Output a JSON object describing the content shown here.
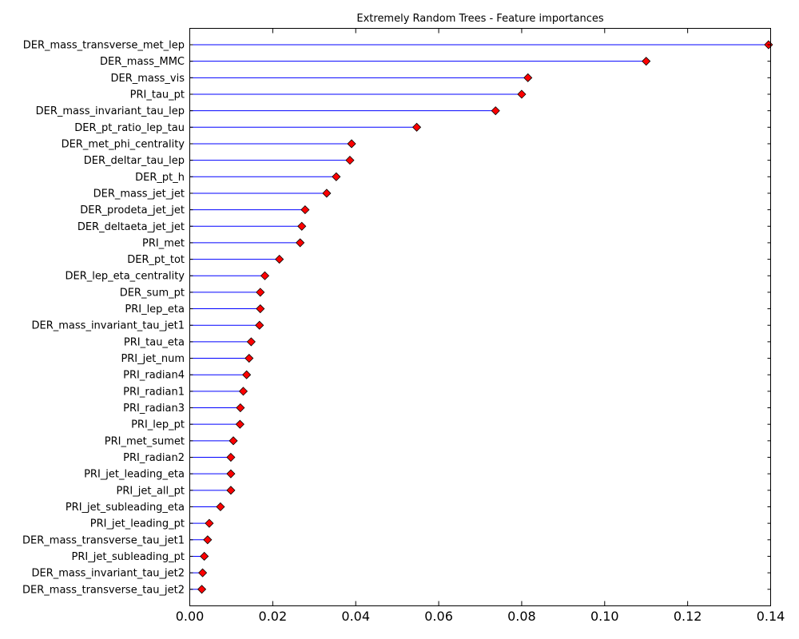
{
  "chart_data": {
    "type": "scatter",
    "title": "Extremely Random Trees - Feature importances",
    "xlabel": "",
    "ylabel": "",
    "xlim": [
      0,
      0.14
    ],
    "x_ticks": [
      0.0,
      0.02,
      0.04,
      0.06,
      0.08,
      0.1,
      0.12,
      0.14
    ],
    "x_tick_labels": [
      "0.00",
      "0.02",
      "0.04",
      "0.06",
      "0.08",
      "0.10",
      "0.12",
      "0.14"
    ],
    "grid": false,
    "legend": "none",
    "stem_color": "#0000ff",
    "marker": "diamond",
    "marker_color": "#ff0000",
    "categories": [
      "DER_mass_transverse_met_lep",
      "DER_mass_MMC",
      "DER_mass_vis",
      "PRI_tau_pt",
      "DER_mass_invariant_tau_lep",
      "DER_pt_ratio_lep_tau",
      "DER_met_phi_centrality",
      "DER_deltar_tau_lep",
      "DER_pt_h",
      "DER_mass_jet_jet",
      "DER_prodeta_jet_jet",
      "DER_deltaeta_jet_jet",
      "PRI_met",
      "DER_pt_tot",
      "DER_lep_eta_centrality",
      "DER_sum_pt",
      "PRI_lep_eta",
      "DER_mass_invariant_tau_jet1",
      "PRI_tau_eta",
      "PRI_jet_num",
      "PRI_radian4",
      "PRI_radian1",
      "PRI_radian3",
      "PRI_lep_pt",
      "PRI_met_sumet",
      "PRI_radian2",
      "PRI_jet_leading_eta",
      "PRI_jet_all_pt",
      "PRI_jet_subleading_eta",
      "PRI_jet_leading_pt",
      "DER_mass_transverse_tau_jet1",
      "PRI_jet_subleading_pt",
      "DER_mass_invariant_tau_jet2",
      "DER_mass_transverse_tau_jet2"
    ],
    "values": [
      0.1395,
      0.11,
      0.0815,
      0.08,
      0.0737,
      0.0547,
      0.039,
      0.0386,
      0.0353,
      0.033,
      0.0278,
      0.027,
      0.0266,
      0.0216,
      0.0181,
      0.017,
      0.017,
      0.0168,
      0.0148,
      0.0143,
      0.0137,
      0.0129,
      0.0122,
      0.0121,
      0.0105,
      0.0099,
      0.0099,
      0.0099,
      0.0074,
      0.0047,
      0.0043,
      0.0035,
      0.0031,
      0.0029
    ]
  }
}
